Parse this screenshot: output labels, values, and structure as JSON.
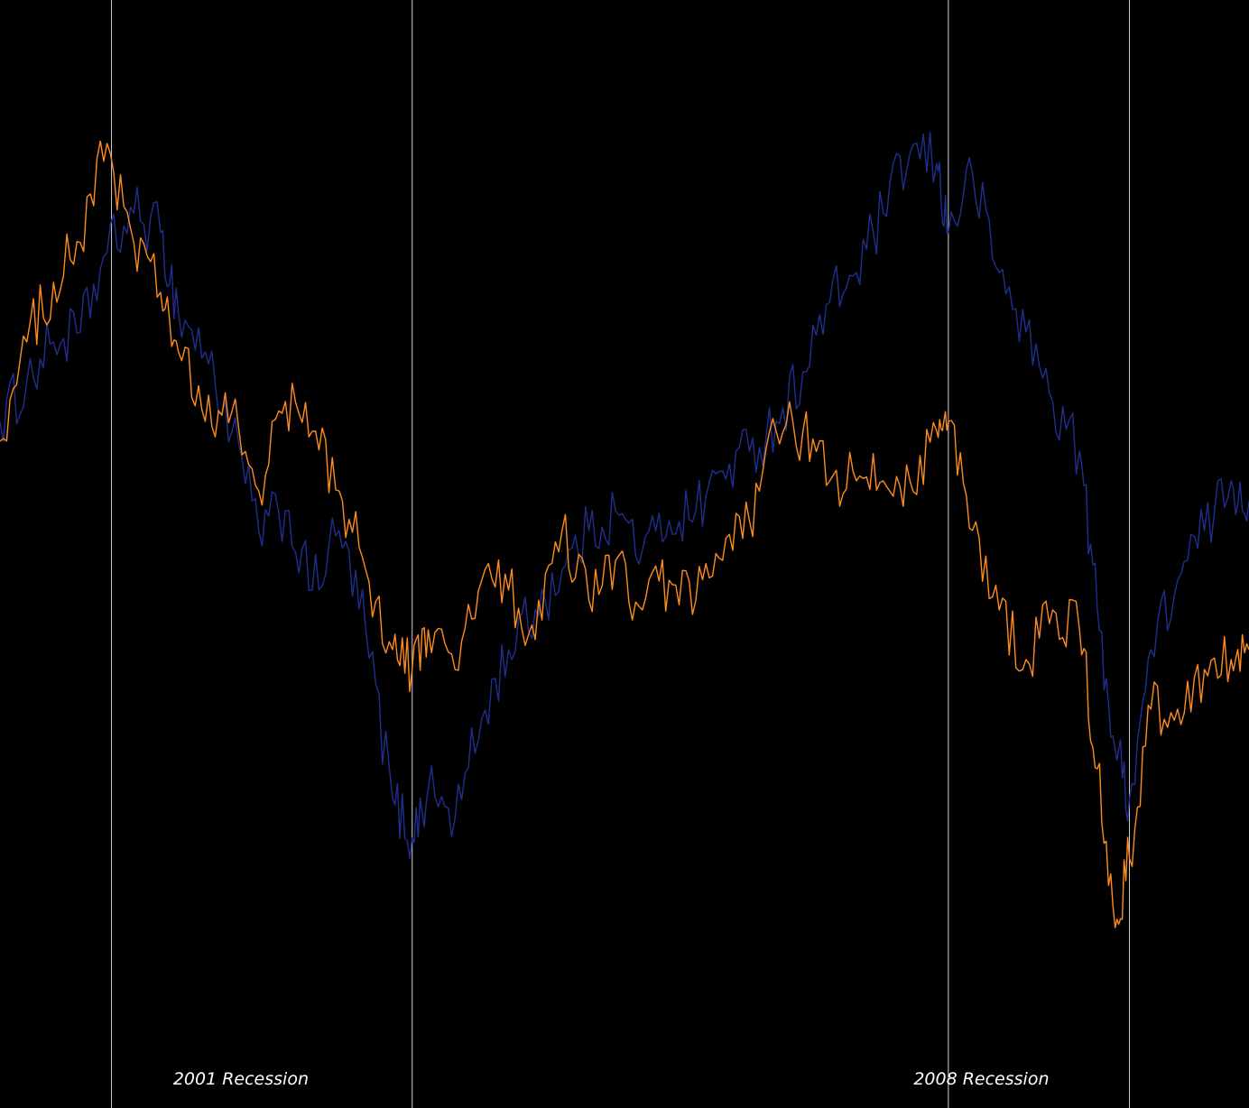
{
  "chart_data": {
    "type": "line",
    "title": "",
    "xlabel": "",
    "ylabel": "",
    "grid": false,
    "legend": "none",
    "background_color": "#000000",
    "xlim": [
      1998.0,
      2012.0
    ],
    "ylim": [
      0,
      100
    ],
    "recession_boundaries": [
      1999.25,
      2002.62,
      2008.63,
      2010.66
    ],
    "annotations": [
      {
        "text": "2001 Recession",
        "x": 2000.7
      },
      {
        "text": "2008 Recession",
        "x": 2009.0
      }
    ],
    "series": [
      {
        "color": "#1f2f8f",
        "x": [
          1998.0,
          1998.3,
          1998.6,
          1998.9,
          1999.2,
          1999.5,
          1999.8,
          2000.0,
          2000.3,
          2000.6,
          2000.9,
          2001.2,
          2001.5,
          2001.8,
          2002.1,
          2002.4,
          2002.62,
          2002.8,
          2003.1,
          2003.4,
          2003.7,
          2004.0,
          2004.3,
          2004.6,
          2004.9,
          2005.2,
          2005.5,
          2005.8,
          2006.1,
          2006.4,
          2006.7,
          2007.0,
          2007.3,
          2007.6,
          2007.9,
          2008.2,
          2008.5,
          2008.63,
          2008.9,
          2009.2,
          2009.5,
          2009.8,
          2010.1,
          2010.3,
          2010.5,
          2010.66,
          2010.9,
          2011.2,
          2011.5,
          2011.8,
          2012.0
        ],
        "values": [
          63,
          67,
          71,
          72,
          80,
          84,
          82,
          74,
          70,
          62,
          52,
          54,
          46,
          52,
          42,
          25,
          21,
          26,
          23,
          33,
          40,
          44,
          48,
          52,
          54,
          50,
          53,
          54,
          58,
          60,
          63,
          68,
          75,
          78,
          84,
          90,
          89,
          82,
          88,
          78,
          72,
          65,
          60,
          44,
          30,
          25,
          40,
          47,
          52,
          57,
          55
        ]
      },
      {
        "color": "#ff8c1f",
        "x": [
          1998.0,
          1998.3,
          1998.6,
          1998.9,
          1999.2,
          1999.5,
          1999.8,
          2000.0,
          2000.3,
          2000.6,
          2000.9,
          2001.2,
          2001.5,
          2001.8,
          2002.1,
          2002.4,
          2002.62,
          2002.8,
          2003.1,
          2003.4,
          2003.7,
          2004.0,
          2004.3,
          2004.6,
          2004.9,
          2005.2,
          2005.5,
          2005.8,
          2006.1,
          2006.4,
          2006.7,
          2007.0,
          2007.3,
          2007.6,
          2007.9,
          2008.2,
          2008.5,
          2008.63,
          2008.9,
          2009.2,
          2009.5,
          2009.8,
          2010.1,
          2010.3,
          2010.5,
          2010.66,
          2010.9,
          2011.2,
          2011.5,
          2011.8,
          2012.0
        ],
        "values": [
          61,
          71,
          77,
          81,
          91,
          81,
          76,
          70,
          63,
          64,
          56,
          65,
          62,
          56,
          48,
          40,
          38,
          42,
          38,
          47,
          46,
          41,
          52,
          45,
          49,
          44,
          47,
          45,
          49,
          53,
          62,
          62,
          57,
          57,
          57,
          57,
          62,
          63,
          52,
          44,
          39,
          44,
          42,
          28,
          12,
          19,
          34,
          34,
          38,
          39,
          40
        ]
      }
    ]
  }
}
